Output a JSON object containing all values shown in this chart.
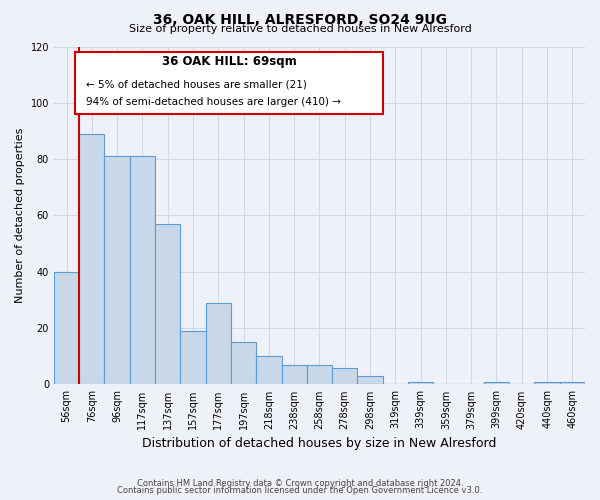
{
  "title": "36, OAK HILL, ALRESFORD, SO24 9UG",
  "subtitle": "Size of property relative to detached houses in New Alresford",
  "xlabel": "Distribution of detached houses by size in New Alresford",
  "ylabel": "Number of detached properties",
  "bar_labels": [
    "56sqm",
    "76sqm",
    "96sqm",
    "117sqm",
    "137sqm",
    "157sqm",
    "177sqm",
    "197sqm",
    "218sqm",
    "238sqm",
    "258sqm",
    "278sqm",
    "298sqm",
    "319sqm",
    "339sqm",
    "359sqm",
    "379sqm",
    "399sqm",
    "420sqm",
    "440sqm",
    "460sqm"
  ],
  "bar_values": [
    40,
    89,
    81,
    81,
    57,
    19,
    29,
    15,
    10,
    7,
    7,
    6,
    3,
    0,
    1,
    0,
    0,
    1,
    0,
    1,
    1
  ],
  "bar_color": "#c8d8e8",
  "bar_edge_color": "#5b9bd5",
  "marker_color": "#cc0000",
  "ylim": [
    0,
    120
  ],
  "yticks": [
    0,
    20,
    40,
    60,
    80,
    100,
    120
  ],
  "annotation_title": "36 OAK HILL: 69sqm",
  "annotation_line1": "← 5% of detached houses are smaller (21)",
  "annotation_line2": "94% of semi-detached houses are larger (410) →",
  "annotation_box_color": "#cc0000",
  "footer1": "Contains HM Land Registry data © Crown copyright and database right 2024.",
  "footer2": "Contains public sector information licensed under the Open Government Licence v3.0.",
  "grid_color": "#cdd8e8",
  "background_color": "#eef2f8"
}
